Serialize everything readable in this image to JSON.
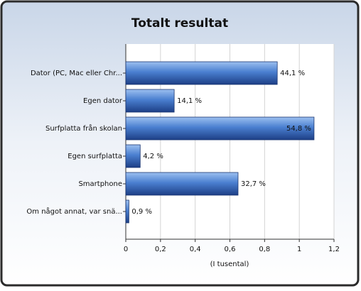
{
  "chart_data": {
    "type": "hbar",
    "title": "Totalt resultat",
    "categories": [
      "Dator (PC, Mac eller Chr...",
      "Egen dator",
      "Surfplatta från skolan",
      "Egen surfplatta",
      "Smartphone",
      "Om något annat,  var snä..."
    ],
    "values": [
      0.873,
      0.279,
      1.085,
      0.083,
      0.647,
      0.018
    ],
    "value_labels": [
      "44,1 %",
      "14,1 %",
      "54,8 %",
      "4,2 %",
      "32,7 %",
      "0,9 %"
    ],
    "color": "#4a7fd0",
    "xlim": [
      0,
      1.2
    ],
    "xticks": [
      0,
      {
        "value": 0.2,
        "label": "0,2"
      },
      {
        "value": 0.4,
        "label": "0,4"
      },
      {
        "value": 0.6,
        "label": "0,6"
      },
      {
        "value": 0.8,
        "label": "0,8"
      },
      1,
      {
        "value": 1.2,
        "label": "1,2"
      }
    ],
    "xlabel": "(I tusental)",
    "grid": true
  }
}
